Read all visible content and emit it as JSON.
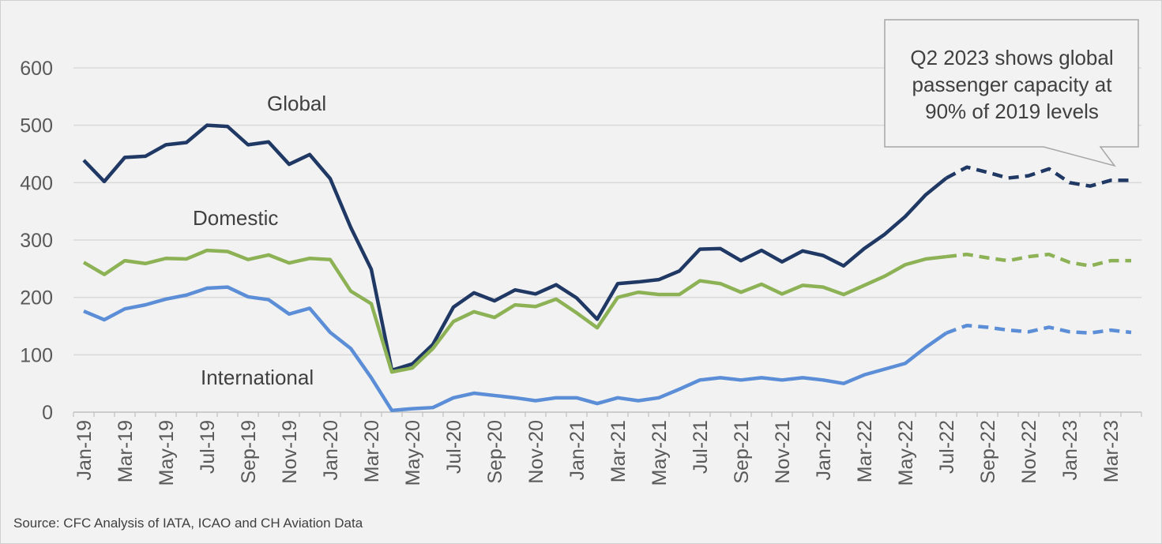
{
  "chart_data": {
    "type": "line",
    "title": "",
    "xlabel": "",
    "ylabel": "",
    "ylim": [
      0,
      600
    ],
    "yticks": [
      0,
      100,
      200,
      300,
      400,
      500,
      600
    ],
    "grid": true,
    "legend": "inline labels",
    "x": [
      "Jan-19",
      "Feb-19",
      "Mar-19",
      "Apr-19",
      "May-19",
      "Jun-19",
      "Jul-19",
      "Aug-19",
      "Sep-19",
      "Oct-19",
      "Nov-19",
      "Dec-19",
      "Jan-20",
      "Feb-20",
      "Mar-20",
      "Apr-20",
      "May-20",
      "Jun-20",
      "Jul-20",
      "Aug-20",
      "Sep-20",
      "Oct-20",
      "Nov-20",
      "Dec-20",
      "Jan-21",
      "Feb-21",
      "Mar-21",
      "Apr-21",
      "May-21",
      "Jun-21",
      "Jul-21",
      "Aug-21",
      "Sep-21",
      "Oct-21",
      "Nov-21",
      "Dec-21",
      "Jan-22",
      "Feb-22",
      "Mar-22",
      "Apr-22",
      "May-22",
      "Jun-22",
      "Jul-22",
      "Aug-22",
      "Sep-22",
      "Oct-22",
      "Nov-22",
      "Dec-22",
      "Jan-23",
      "Feb-23",
      "Mar-23",
      "Apr-23"
    ],
    "x_tick_labels": [
      "Jan-19",
      "Mar-19",
      "May-19",
      "Jul-19",
      "Sep-19",
      "Nov-19",
      "Jan-20",
      "Mar-20",
      "May-20",
      "Jul-20",
      "Sep-20",
      "Nov-20",
      "Jan-21",
      "Mar-21",
      "May-21",
      "Jul-21",
      "Sep-21",
      "Nov-21",
      "Jan-22",
      "Mar-22",
      "May-22",
      "Jul-22",
      "Sep-22",
      "Nov-22",
      "Jan-23",
      "Mar-23"
    ],
    "projection_starts_at": "Aug-22",
    "series": [
      {
        "name": "Global",
        "color": "#1f3864",
        "values": [
          439,
          402,
          444,
          446,
          466,
          470,
          500,
          498,
          466,
          471,
          432,
          449,
          407,
          322,
          249,
          73,
          84,
          118,
          183,
          208,
          194,
          213,
          206,
          222,
          199,
          162,
          224,
          227,
          231,
          246,
          284,
          285,
          264,
          282,
          262,
          281,
          273,
          255,
          285,
          310,
          341,
          379,
          408,
          427,
          418,
          408,
          412,
          424,
          400,
          394,
          404,
          404
        ]
      },
      {
        "name": "Domestic",
        "color": "#8db256",
        "values": [
          261,
          240,
          264,
          259,
          268,
          267,
          282,
          280,
          266,
          274,
          260,
          268,
          266,
          211,
          189,
          70,
          77,
          111,
          158,
          175,
          165,
          187,
          184,
          197,
          173,
          147,
          200,
          209,
          205,
          205,
          229,
          224,
          209,
          223,
          206,
          221,
          218,
          205,
          221,
          237,
          257,
          267,
          271,
          275,
          269,
          264,
          271,
          275,
          261,
          255,
          264,
          264
        ]
      },
      {
        "name": "International",
        "color": "#5b8ed6",
        "values": [
          176,
          161,
          180,
          187,
          197,
          204,
          216,
          218,
          201,
          196,
          171,
          181,
          139,
          111,
          60,
          3,
          6,
          8,
          25,
          33,
          29,
          25,
          20,
          25,
          25,
          15,
          25,
          20,
          25,
          40,
          56,
          60,
          56,
          60,
          56,
          60,
          56,
          50,
          65,
          75,
          85,
          113,
          138,
          151,
          148,
          143,
          140,
          148,
          140,
          138,
          143,
          139
        ]
      }
    ],
    "annotation": "Q2 2023 shows global passenger capacity at 90% of 2019 levels",
    "annotation_lines": [
      "Q2 2023 shows global",
      "passenger capacity at",
      "90% of 2019 levels"
    ]
  },
  "source": "Source: CFC Analysis of IATA, ICAO and CH Aviation Data"
}
